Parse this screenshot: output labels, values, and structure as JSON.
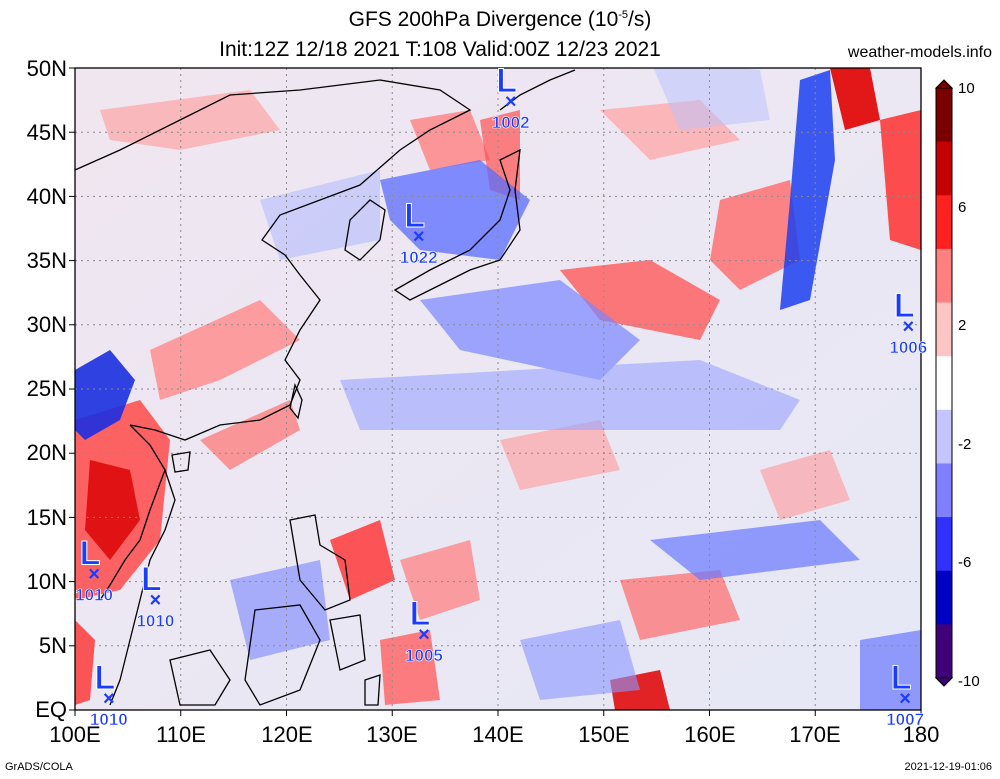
{
  "header": {
    "title_prefix": "GFS 200hPa Divergence (10",
    "title_exponent": "-5",
    "title_suffix": "/s)",
    "subtitle": "Init:12Z 12/18 2021 T:108 Valid:00Z 12/23 2021",
    "brand": "weather-models.info"
  },
  "axes": {
    "lat_labels": [
      "50N",
      "45N",
      "40N",
      "35N",
      "30N",
      "25N",
      "20N",
      "15N",
      "10N",
      "5N",
      "EQ"
    ],
    "lon_labels": [
      "100E",
      "110E",
      "120E",
      "130E",
      "140E",
      "150E",
      "160E",
      "170E",
      "180"
    ]
  },
  "colorbar": {
    "labels": [
      "10",
      "6",
      "2",
      "-2",
      "-6",
      "-10"
    ],
    "colors": [
      "#7a0000",
      "#c40000",
      "#ff2020",
      "#ff8080",
      "#ffc4c4",
      "#ffffff",
      "#c4c4ff",
      "#8080ff",
      "#3030ff",
      "#0000c4",
      "#40007a"
    ]
  },
  "lows": [
    {
      "symbol": "L",
      "pressure": "1002",
      "lon": 141.2,
      "lat": 47.5
    },
    {
      "symbol": "L",
      "pressure": "1022",
      "lon": 132.5,
      "lat": 37.0
    },
    {
      "symbol": "L",
      "pressure": "1006",
      "lon": 178.8,
      "lat": 30.0
    },
    {
      "symbol": "L",
      "pressure": "1010",
      "lon": 101.8,
      "lat": 10.7
    },
    {
      "symbol": "L",
      "pressure": "1010",
      "lon": 107.6,
      "lat": 8.7
    },
    {
      "symbol": "L",
      "pressure": "1005",
      "lon": 133.0,
      "lat": 6.0
    },
    {
      "symbol": "L",
      "pressure": "1010",
      "lon": 103.2,
      "lat": 1.0
    },
    {
      "symbol": "L",
      "pressure": "1007",
      "lon": 178.5,
      "lat": 1.0
    }
  ],
  "footer": {
    "left": "GrADS/COLA",
    "right": "2021-12-19-01:06"
  }
}
